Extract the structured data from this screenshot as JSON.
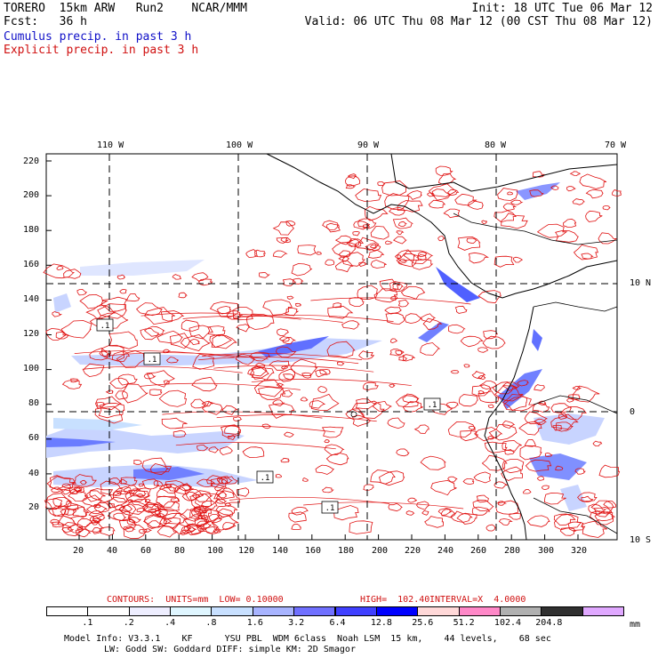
{
  "header": {
    "line1_left": "TORERO  15km ARW   Run2    NCAR/MMM",
    "line1_right": "Init: 18 UTC Tue 06 Mar 12",
    "line2_left": "Fcst:   36 h",
    "line2_right": "Valid: 06 UTC Thu 08 Mar 12 (00 CST Thu 08 Mar 12)",
    "cumulus": "Cumulus precip. in past 3 h",
    "explicit": "Explicit precip. in past 3 h"
  },
  "axes": {
    "top_lon": [
      "110 W",
      "100 W",
      "90 W",
      "80 W",
      "70 W"
    ],
    "left_y": [
      "220",
      "200",
      "180",
      "160",
      "140",
      "120",
      "100",
      "80",
      "60",
      "40",
      "20"
    ],
    "bottom_x": [
      "20",
      "40",
      "60",
      "80",
      "100",
      "120",
      "140",
      "160",
      "180",
      "200",
      "220",
      "240",
      "260",
      "280",
      "300",
      "320"
    ],
    "right_lat": [
      "10 N",
      "0",
      "10 S"
    ]
  },
  "contour_labels": [
    ".1",
    ".1",
    ".1",
    ".1",
    ".1"
  ],
  "contours_info": {
    "units": "CONTOURS:  UNITS=mm  LOW= 0.10000",
    "high": "HIGH=  102.40",
    "interval": "INTERVAL=X  4.0000"
  },
  "colorbar": {
    "labels": [
      ".1",
      ".2",
      ".4",
      ".8",
      "1.6",
      "3.2",
      "6.4",
      "12.8",
      "25.6",
      "51.2",
      "102.4",
      "204.8"
    ],
    "unit": "mm",
    "colors": [
      "#ffffff",
      "#ffffff",
      "#eeeeff",
      "#dff6ff",
      "#c8e0ff",
      "#a8b4ff",
      "#7070ff",
      "#4040ff",
      "#0000ff",
      "#ffd8d8",
      "#ff88c8",
      "#b0b0b0",
      "#303030",
      "#e0a8ff"
    ]
  },
  "model_info": {
    "line1": "Model Info: V3.3.1    KF      YSU PBL  WDM 6class  Noah LSM  15 km,    44 levels,    68 sec",
    "line2": "LW: Godd SW: Goddard DIFF: simple KM: 2D Smagor"
  }
}
